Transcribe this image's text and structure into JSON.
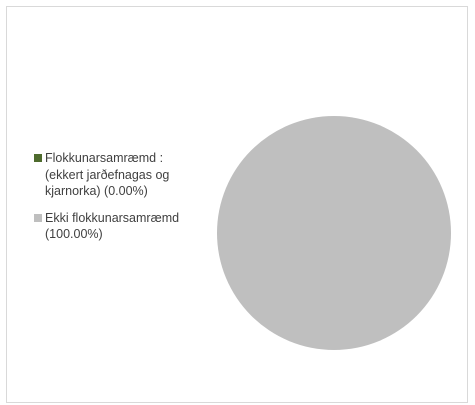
{
  "chart_data": {
    "type": "pie",
    "series": [
      {
        "name": "Flokkunarsamræmd : (ekkert jarðefnagas og kjarnorka) (0.00%)",
        "value": 0.0,
        "color": "#4e6b2d"
      },
      {
        "name": "Ekki flokkunarsamræmd (100.00%)",
        "value": 100.0,
        "color": "#bfbfbf"
      }
    ],
    "legend_position": "left",
    "title": ""
  }
}
